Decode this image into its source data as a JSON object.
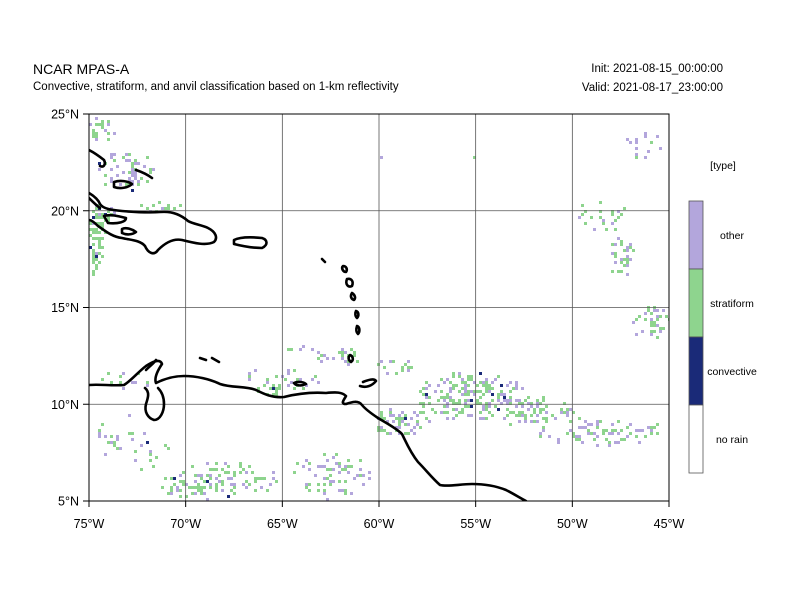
{
  "header": {
    "title": "NCAR MPAS-A",
    "subtitle": "Convective, stratiform, and anvil classification based on 1-km reflectivity",
    "init": "Init: 2021-08-15_00:00:00",
    "valid": "Valid: 2021-08-17_23:00:00"
  },
  "map": {
    "lon_range": [
      -75,
      -45
    ],
    "lat_range": [
      5,
      25
    ],
    "gridlines": true,
    "x_ticks": [
      "75°W",
      "70°W",
      "65°W",
      "60°W",
      "55°W",
      "50°W",
      "45°W"
    ],
    "y_ticks": [
      "25°N",
      "20°N",
      "15°N",
      "10°N",
      "5°N"
    ],
    "colors": {
      "other": "#b3a6dc",
      "stratiform": "#8ed48e",
      "convective": "#1a2a78",
      "no_rain": "#ffffff",
      "coast": "#000000",
      "grid": "#555555"
    }
  },
  "legend": {
    "title": "[type]",
    "items": [
      {
        "label": "other",
        "color": "#b3a6dc"
      },
      {
        "label": "stratiform",
        "color": "#8ed48e"
      },
      {
        "label": "convective",
        "color": "#1a2a78"
      },
      {
        "label": "no rain",
        "color": "#ffffff"
      }
    ]
  }
}
